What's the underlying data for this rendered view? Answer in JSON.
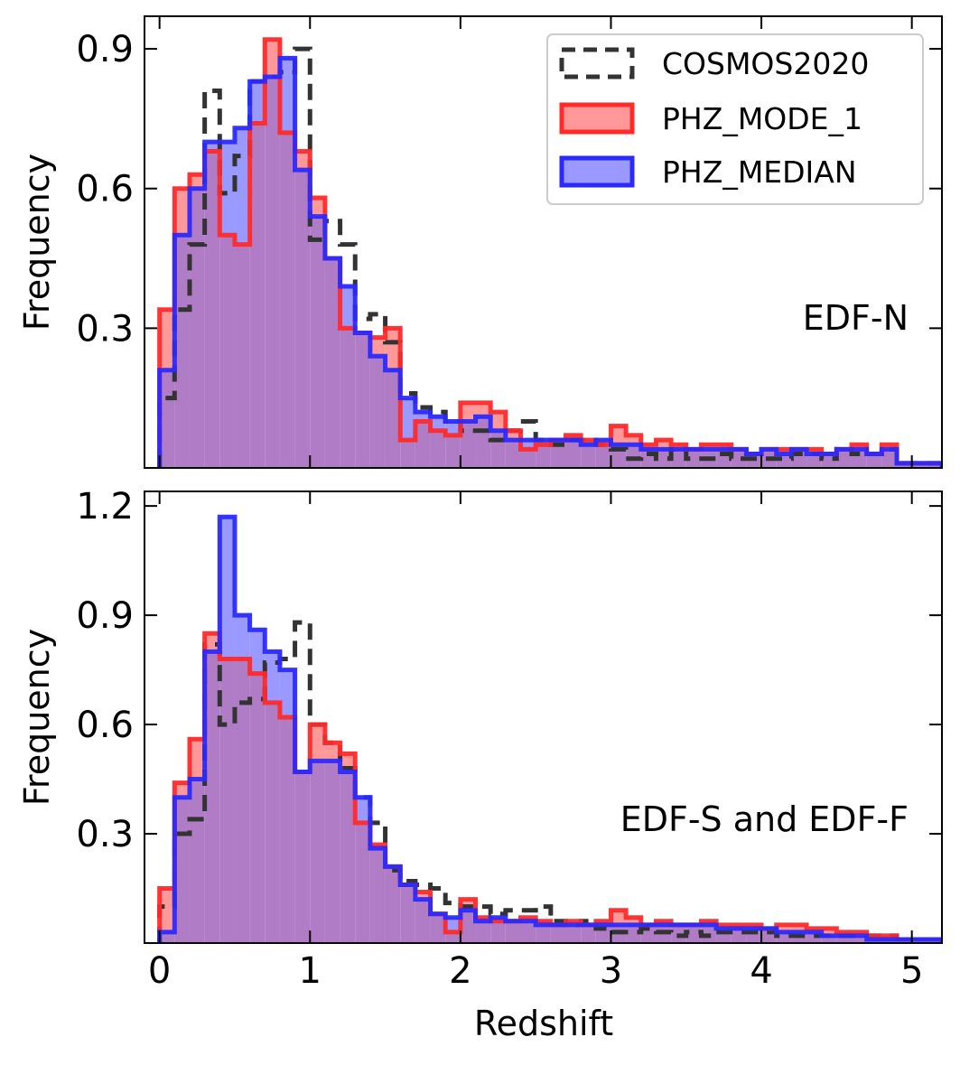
{
  "figure": {
    "xlabel": "Redshift",
    "colors": {
      "cosmos_edge": "#333333",
      "mode_edge": "#ff2a2a",
      "mode_fill": "#ff9999",
      "median_edge": "#2a2aff",
      "median_fill": "#9999ff",
      "overlap_fill": "#b07cc6"
    },
    "legend": {
      "position": "top-right",
      "entries": [
        "COSMOS2020",
        "PHZ_MODE_1",
        "PHZ_MEDIAN"
      ]
    }
  },
  "chart_data": [
    {
      "type": "histogram",
      "panel_label": "EDF-N",
      "xlabel": "",
      "ylabel": "Frequency",
      "xlim": [
        -0.1,
        5.2
      ],
      "ylim": [
        0,
        0.97
      ],
      "xticks": [
        0,
        1,
        2,
        3,
        4,
        5
      ],
      "xtick_labels": [
        "",
        "",
        "",
        "",
        "",
        ""
      ],
      "yticks": [
        0.3,
        0.6,
        0.9
      ],
      "ytick_labels": [
        "0.3",
        "0.6",
        "0.9"
      ],
      "bin_width": 0.1,
      "bin_start": 0.0,
      "series": [
        {
          "name": "COSMOS2020",
          "style": "dashed",
          "values": [
            0.15,
            0.34,
            0.48,
            0.81,
            0.59,
            0.67,
            0.83,
            0.84,
            0.85,
            0.9,
            0.49,
            0.53,
            0.48,
            0.32,
            0.33,
            0.27,
            0.16,
            0.13,
            0.12,
            0.1,
            0.08,
            0.08,
            0.06,
            0.08,
            0.1,
            0.06,
            0.05,
            0.06,
            0.06,
            0.05,
            0.04,
            0.02,
            0.03,
            0.02,
            0.04,
            0.02,
            0.02,
            0.03,
            0.02,
            0.02,
            0.02,
            0.02,
            0.03,
            0.03,
            0.02,
            0.04,
            0.03,
            0.03,
            0.04,
            0.01,
            0.01,
            0.01
          ]
        },
        {
          "name": "PHZ_MODE_1",
          "style": "filled",
          "values": [
            0.34,
            0.6,
            0.63,
            0.68,
            0.5,
            0.48,
            0.74,
            0.92,
            0.72,
            0.68,
            0.58,
            0.45,
            0.3,
            0.29,
            0.28,
            0.3,
            0.06,
            0.1,
            0.08,
            0.07,
            0.14,
            0.14,
            0.12,
            0.08,
            0.04,
            0.05,
            0.06,
            0.07,
            0.06,
            0.05,
            0.09,
            0.07,
            0.05,
            0.06,
            0.05,
            0.04,
            0.05,
            0.05,
            0.04,
            0.03,
            0.04,
            0.04,
            0.04,
            0.04,
            0.03,
            0.04,
            0.05,
            0.03,
            0.05,
            0.01,
            0.01,
            0.01
          ]
        },
        {
          "name": "PHZ_MEDIAN",
          "style": "filled",
          "values": [
            0.21,
            0.5,
            0.6,
            0.7,
            0.7,
            0.73,
            0.83,
            0.84,
            0.88,
            0.64,
            0.54,
            0.45,
            0.39,
            0.29,
            0.24,
            0.21,
            0.15,
            0.12,
            0.11,
            0.1,
            0.1,
            0.11,
            0.08,
            0.06,
            0.06,
            0.06,
            0.06,
            0.06,
            0.05,
            0.06,
            0.05,
            0.05,
            0.04,
            0.04,
            0.04,
            0.04,
            0.04,
            0.04,
            0.04,
            0.03,
            0.04,
            0.03,
            0.04,
            0.03,
            0.03,
            0.04,
            0.04,
            0.03,
            0.04,
            0.01,
            0.01,
            0.01
          ]
        }
      ]
    },
    {
      "type": "histogram",
      "panel_label": "EDF-S and EDF-F",
      "xlabel": "Redshift",
      "ylabel": "Frequency",
      "xlim": [
        -0.1,
        5.2
      ],
      "ylim": [
        0,
        1.24
      ],
      "xticks": [
        0,
        1,
        2,
        3,
        4,
        5
      ],
      "xtick_labels": [
        "0",
        "1",
        "2",
        "3",
        "4",
        "5"
      ],
      "yticks": [
        0.3,
        0.6,
        0.9,
        1.2
      ],
      "ytick_labels": [
        "0.3",
        "0.6",
        "0.9",
        "1.2"
      ],
      "bin_width": 0.1,
      "bin_start": 0.0,
      "series": [
        {
          "name": "COSMOS2020",
          "style": "dashed",
          "values": [
            0.1,
            0.3,
            0.34,
            0.82,
            0.6,
            0.66,
            0.67,
            0.77,
            0.78,
            0.88,
            0.6,
            0.55,
            0.48,
            0.4,
            0.33,
            0.2,
            0.17,
            0.16,
            0.15,
            0.11,
            0.1,
            0.1,
            0.08,
            0.09,
            0.09,
            0.1,
            0.06,
            0.05,
            0.06,
            0.04,
            0.03,
            0.03,
            0.04,
            0.03,
            0.02,
            0.03,
            0.02,
            0.03,
            0.03,
            0.03,
            0.03,
            0.02,
            0.02,
            0.02,
            0.02,
            0.02,
            0.02,
            0.02,
            0.02,
            0.01,
            0.01,
            0.01
          ]
        },
        {
          "name": "PHZ_MODE_1",
          "style": "filled",
          "values": [
            0.15,
            0.44,
            0.56,
            0.85,
            0.78,
            0.78,
            0.74,
            0.66,
            0.62,
            0.47,
            0.6,
            0.55,
            0.52,
            0.33,
            0.27,
            0.21,
            0.16,
            0.14,
            0.08,
            0.03,
            0.12,
            0.07,
            0.06,
            0.06,
            0.07,
            0.06,
            0.05,
            0.06,
            0.05,
            0.06,
            0.09,
            0.07,
            0.05,
            0.06,
            0.05,
            0.05,
            0.06,
            0.05,
            0.05,
            0.05,
            0.04,
            0.05,
            0.05,
            0.04,
            0.04,
            0.03,
            0.03,
            0.02,
            0.02,
            0.01,
            0.01,
            0.01
          ]
        },
        {
          "name": "PHZ_MEDIAN",
          "style": "filled",
          "values": [
            0.03,
            0.4,
            0.45,
            0.8,
            1.17,
            0.9,
            0.86,
            0.8,
            0.75,
            0.47,
            0.5,
            0.5,
            0.47,
            0.4,
            0.26,
            0.21,
            0.16,
            0.12,
            0.08,
            0.07,
            0.09,
            0.06,
            0.07,
            0.06,
            0.06,
            0.05,
            0.05,
            0.05,
            0.05,
            0.05,
            0.05,
            0.05,
            0.05,
            0.05,
            0.05,
            0.05,
            0.05,
            0.04,
            0.04,
            0.04,
            0.04,
            0.03,
            0.03,
            0.03,
            0.02,
            0.02,
            0.02,
            0.01,
            0.01,
            0.01,
            0.01,
            0.01
          ]
        }
      ]
    }
  ]
}
